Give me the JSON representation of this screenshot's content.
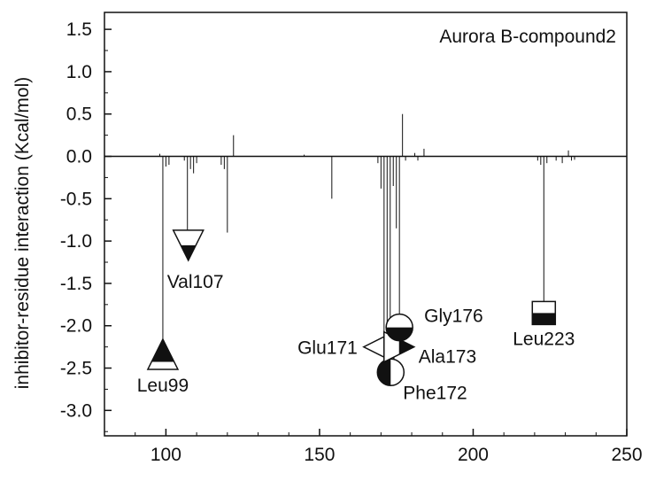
{
  "chart_data": {
    "type": "bar",
    "title": "Aurora B-compound2",
    "xlabel": "",
    "ylabel": "inhibitor-residue interaction (Kcal/mol)",
    "xlim": [
      80,
      250
    ],
    "ylim": [
      -3.3,
      1.7
    ],
    "xticks": [
      100,
      150,
      200,
      250
    ],
    "xtick_labels": [
      "100",
      "150",
      "200",
      "250"
    ],
    "yticks": [
      1.5,
      1.0,
      0.5,
      0.0,
      -0.5,
      -1.0,
      -1.5,
      -2.0,
      -2.5,
      -3.0
    ],
    "ytick_labels": [
      "1.5",
      "1.0",
      "0.5",
      "0.0",
      "-0.5",
      "-1.0",
      "-1.5",
      "-2.0",
      "-2.5",
      "-3.0"
    ],
    "grid": false,
    "bars": [
      {
        "x": 98,
        "y": 0.03
      },
      {
        "x": 99,
        "y": -2.4
      },
      {
        "x": 100,
        "y": -0.12
      },
      {
        "x": 101,
        "y": -0.1
      },
      {
        "x": 106,
        "y": -0.05
      },
      {
        "x": 107,
        "y": -1.05
      },
      {
        "x": 108,
        "y": -0.15
      },
      {
        "x": 109,
        "y": -0.2
      },
      {
        "x": 110,
        "y": -0.08
      },
      {
        "x": 118,
        "y": -0.1
      },
      {
        "x": 119,
        "y": -0.15
      },
      {
        "x": 120,
        "y": -0.9
      },
      {
        "x": 122,
        "y": 0.25
      },
      {
        "x": 145,
        "y": 0.02
      },
      {
        "x": 154,
        "y": -0.5
      },
      {
        "x": 169,
        "y": -0.08
      },
      {
        "x": 170,
        "y": -0.38
      },
      {
        "x": 171,
        "y": -2.25
      },
      {
        "x": 172,
        "y": -2.55
      },
      {
        "x": 173,
        "y": -2.25
      },
      {
        "x": 174,
        "y": -0.35
      },
      {
        "x": 175,
        "y": -0.85
      },
      {
        "x": 176,
        "y": -2.02
      },
      {
        "x": 177,
        "y": 0.5
      },
      {
        "x": 178,
        "y": -0.05
      },
      {
        "x": 181,
        "y": 0.04
      },
      {
        "x": 182,
        "y": -0.05
      },
      {
        "x": 184,
        "y": 0.09
      },
      {
        "x": 221,
        "y": -0.05
      },
      {
        "x": 222,
        "y": -0.1
      },
      {
        "x": 223,
        "y": -1.85
      },
      {
        "x": 224,
        "y": -0.08
      },
      {
        "x": 227,
        "y": -0.05
      },
      {
        "x": 229,
        "y": -0.08
      },
      {
        "x": 231,
        "y": 0.07
      },
      {
        "x": 232,
        "y": -0.05
      },
      {
        "x": 233,
        "y": -0.04
      }
    ],
    "annotations": [
      {
        "label": "Leu99",
        "residue": 99,
        "value": -2.4,
        "marker": "triangle-up-half-filled"
      },
      {
        "label": "Val107",
        "residue": 107,
        "value": -1.05,
        "marker": "triangle-down-half-filled"
      },
      {
        "label": "Glu171",
        "residue": 171,
        "value": -2.25,
        "marker": "triangle-left-half-filled"
      },
      {
        "label": "Phe172",
        "residue": 172,
        "value": -2.55,
        "marker": "circle-left-filled"
      },
      {
        "label": "Ala173",
        "residue": 173,
        "value": -2.25,
        "marker": "triangle-right-half-filled"
      },
      {
        "label": "Gly176",
        "residue": 176,
        "value": -2.02,
        "marker": "circle-bottom-filled"
      },
      {
        "label": "Leu223",
        "residue": 223,
        "value": -1.85,
        "marker": "square-bottom-filled"
      }
    ]
  }
}
